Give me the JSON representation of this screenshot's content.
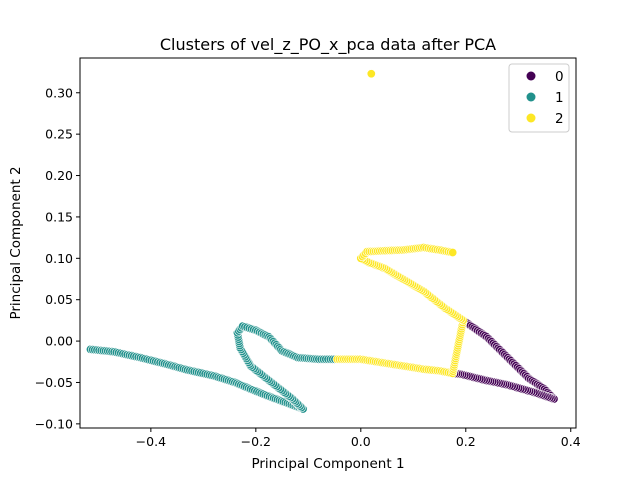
{
  "chart_data": {
    "type": "scatter",
    "title": "Clusters of vel_z_PO_x_pca data after PCA",
    "xlabel": "Principal Component 1",
    "ylabel": "Principal Component 2",
    "xlim": [
      -0.535,
      0.41
    ],
    "ylim": [
      -0.105,
      0.342
    ],
    "xticks": [
      -0.4,
      -0.2,
      0.0,
      0.2,
      0.4
    ],
    "xtick_labels": [
      "−0.4",
      "−0.2",
      "0.0",
      "0.2",
      "0.4"
    ],
    "yticks": [
      -0.1,
      -0.05,
      0.0,
      0.05,
      0.1,
      0.15,
      0.2,
      0.25,
      0.3
    ],
    "ytick_labels": [
      "−0.10",
      "−0.05",
      "0.00",
      "0.05",
      "0.10",
      "0.15",
      "0.20",
      "0.25",
      "0.30"
    ],
    "grid": false,
    "legend_position": "top-right",
    "series": [
      {
        "name": "0",
        "color": "#440154",
        "path": [
          [
            0.195,
            0.025
          ],
          [
            0.24,
            0.005
          ],
          [
            0.28,
            -0.02
          ],
          [
            0.32,
            -0.045
          ],
          [
            0.35,
            -0.058
          ],
          [
            0.368,
            -0.07
          ],
          [
            0.33,
            -0.062
          ],
          [
            0.28,
            -0.053
          ],
          [
            0.235,
            -0.047
          ],
          [
            0.19,
            -0.04
          ],
          [
            0.175,
            -0.039
          ]
        ]
      },
      {
        "name": "1",
        "color": "#21918c",
        "path": [
          [
            -0.515,
            -0.01
          ],
          [
            -0.47,
            -0.013
          ],
          [
            -0.42,
            -0.02
          ],
          [
            -0.37,
            -0.028
          ],
          [
            -0.33,
            -0.035
          ],
          [
            -0.28,
            -0.042
          ],
          [
            -0.24,
            -0.05
          ],
          [
            -0.21,
            -0.058
          ],
          [
            -0.17,
            -0.068
          ],
          [
            -0.14,
            -0.075
          ],
          [
            -0.11,
            -0.082
          ],
          [
            -0.13,
            -0.07
          ],
          [
            -0.17,
            -0.05
          ],
          [
            -0.21,
            -0.03
          ],
          [
            -0.23,
            -0.008
          ],
          [
            -0.235,
            0.01
          ],
          [
            -0.225,
            0.018
          ],
          [
            -0.2,
            0.013
          ],
          [
            -0.175,
            0.005
          ],
          [
            -0.15,
            -0.012
          ],
          [
            -0.12,
            -0.02
          ],
          [
            -0.08,
            -0.022
          ],
          [
            -0.045,
            -0.022
          ]
        ]
      },
      {
        "name": "2",
        "color": "#fde725",
        "path": [
          [
            -0.045,
            -0.022
          ],
          [
            0.0,
            -0.022
          ],
          [
            0.04,
            -0.026
          ],
          [
            0.08,
            -0.03
          ],
          [
            0.12,
            -0.034
          ],
          [
            0.15,
            -0.036
          ],
          [
            0.175,
            -0.039
          ],
          [
            0.195,
            0.025
          ],
          [
            0.16,
            0.04
          ],
          [
            0.12,
            0.06
          ],
          [
            0.08,
            0.075
          ],
          [
            0.045,
            0.088
          ],
          [
            0.015,
            0.095
          ],
          [
            0.0,
            0.1
          ],
          [
            0.012,
            0.108
          ],
          [
            0.04,
            0.109
          ],
          [
            0.08,
            0.11
          ],
          [
            0.12,
            0.113
          ],
          [
            0.15,
            0.11
          ],
          [
            0.175,
            0.107
          ]
        ],
        "points": [
          [
            0.02,
            0.323
          ]
        ]
      }
    ]
  }
}
